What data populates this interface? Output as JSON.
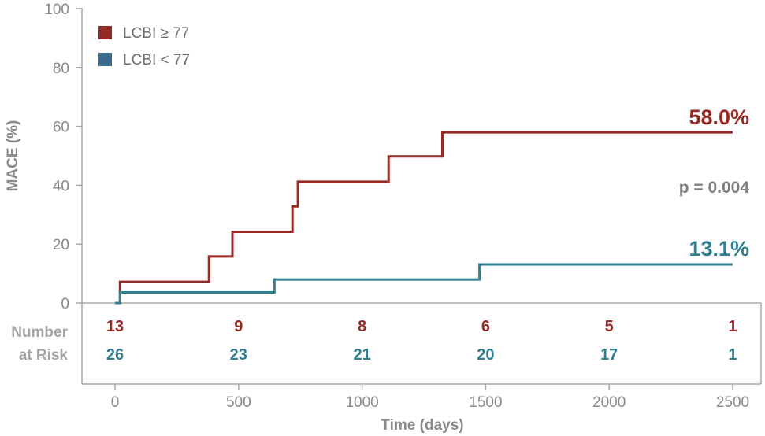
{
  "chart_data": {
    "type": "line",
    "step": true,
    "xlabel": "Time (days)",
    "ylabel": "MACE (%)",
    "xlim": [
      0,
      2500
    ],
    "ylim": [
      0,
      100
    ],
    "xticks": [
      "0",
      "500",
      "1000",
      "1500",
      "2000",
      "2500"
    ],
    "yticks": [
      "0",
      "20",
      "40",
      "60",
      "80",
      "100"
    ],
    "grid": false,
    "legend_position": "top-left",
    "series": [
      {
        "name": "LCBI ≥ 77",
        "color": "#962a24",
        "points": [
          [
            0,
            0
          ],
          [
            20,
            0
          ],
          [
            20,
            7.2
          ],
          [
            380,
            7.2
          ],
          [
            380,
            15.8
          ],
          [
            475,
            15.8
          ],
          [
            475,
            24.2
          ],
          [
            718,
            24.2
          ],
          [
            718,
            32.8
          ],
          [
            740,
            32.8
          ],
          [
            740,
            41.2
          ],
          [
            1107,
            41.2
          ],
          [
            1107,
            49.8
          ],
          [
            1325,
            49.8
          ],
          [
            1325,
            58.0
          ],
          [
            2500,
            58.0
          ]
        ]
      },
      {
        "name": "LCBI < 77",
        "color": "#2f7f91",
        "points": [
          [
            0,
            0
          ],
          [
            20,
            0
          ],
          [
            20,
            3.6
          ],
          [
            645,
            3.6
          ],
          [
            645,
            8.0
          ],
          [
            1475,
            8.0
          ],
          [
            1475,
            13.1
          ],
          [
            2500,
            13.1
          ]
        ]
      }
    ],
    "annotations": {
      "high_final": "58.0%",
      "low_final": "13.1%",
      "pvalue": "p = 0.004"
    },
    "risk_table": {
      "label_line1": "Number",
      "label_line2": "at Risk",
      "times": [
        0,
        500,
        1000,
        1500,
        2000,
        2500
      ],
      "high": [
        "13",
        "9",
        "8",
        "6",
        "5",
        "1"
      ],
      "low": [
        "26",
        "23",
        "21",
        "20",
        "17",
        "1"
      ]
    }
  }
}
